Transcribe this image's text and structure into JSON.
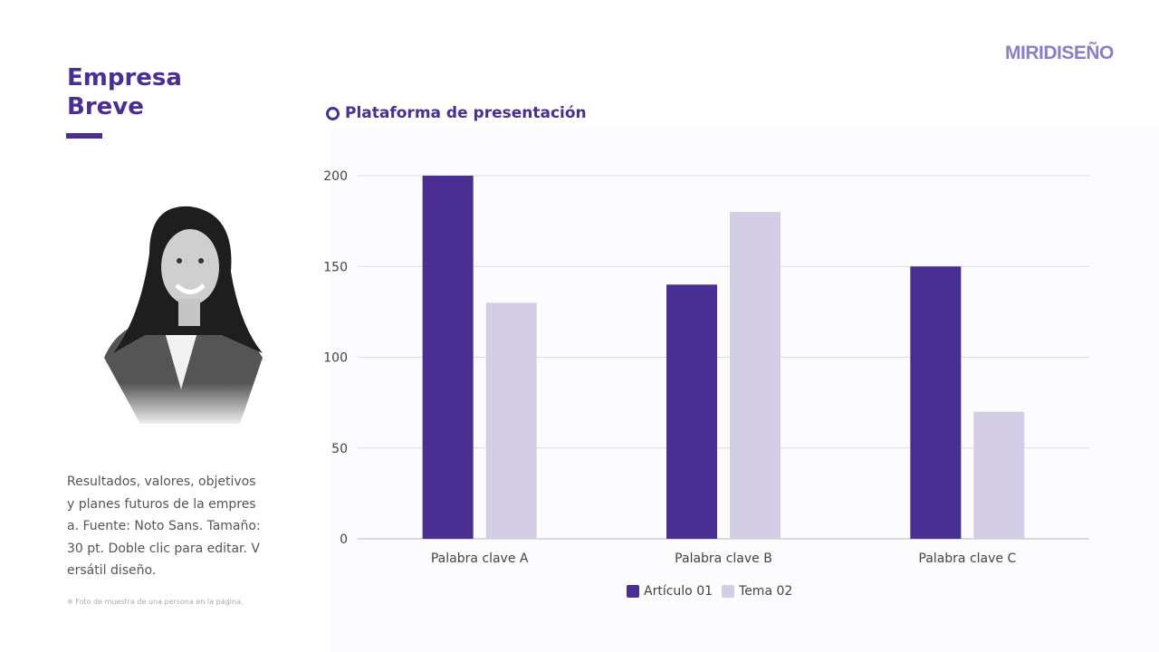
{
  "brand": "MIRIDISEÑO",
  "title": {
    "line1": "Empresa",
    "line2": "Breve"
  },
  "description": "Resultados, valores, objetivos y planes futuros de la empresa. Fuente: Noto Sans. Tamaño: 30 pt. Doble clic para editar. Versátil diseño.",
  "photo_note": "※ Foto de muestra de una persona en la página.",
  "colors": {
    "accent": "#4a2e91",
    "series1": "#4a2e91",
    "series2": "#d3cde6"
  },
  "chart_data": {
    "type": "bar",
    "title": "Plataforma de presentación",
    "categories": [
      "Palabra clave A",
      "Palabra clave B",
      "Palabra clave C"
    ],
    "series": [
      {
        "name": "Artículo 01",
        "values": [
          200,
          140,
          150
        ]
      },
      {
        "name": "Tema 02",
        "values": [
          130,
          180,
          70
        ]
      }
    ],
    "ylim": [
      0,
      200
    ],
    "yticks": [
      0,
      50,
      100,
      150,
      200
    ],
    "grid": true,
    "legend": "bottom"
  }
}
